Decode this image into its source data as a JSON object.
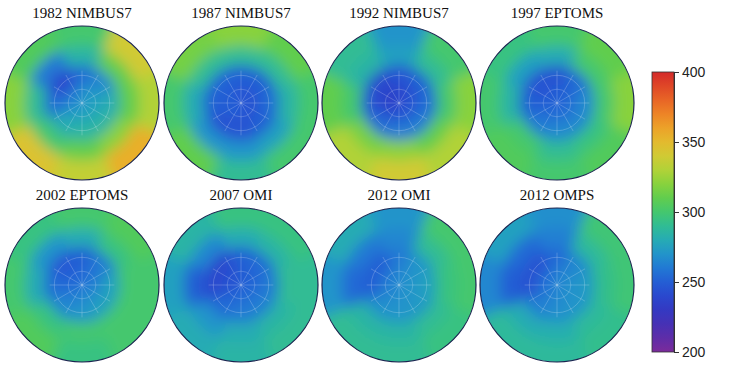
{
  "chart_data": {
    "type": "polar_heatmap",
    "panels": [
      {
        "title": "1982 NIMBUS7",
        "values": [
          [
            270,
            272,
            275,
            275,
            275,
            272,
            265,
            260
          ],
          [
            255,
            265,
            280,
            285,
            285,
            280,
            255,
            240
          ],
          [
            285,
            310,
            310,
            320,
            310,
            300,
            290,
            260
          ],
          [
            300,
            340,
            330,
            355,
            335,
            345,
            320,
            305
          ]
        ]
      },
      {
        "title": "1987 NIMBUS7",
        "values": [
          [
            248,
            245,
            245,
            245,
            248,
            250,
            250,
            248
          ],
          [
            250,
            250,
            255,
            250,
            245,
            245,
            250,
            252
          ],
          [
            290,
            290,
            285,
            275,
            270,
            270,
            280,
            290
          ],
          [
            320,
            310,
            300,
            300,
            290,
            310,
            300,
            315
          ]
        ]
      },
      {
        "title": "1992 NIMBUS7",
        "values": [
          [
            240,
            240,
            245,
            245,
            245,
            240,
            235,
            235
          ],
          [
            245,
            250,
            255,
            260,
            260,
            255,
            245,
            240
          ],
          [
            275,
            290,
            300,
            310,
            320,
            315,
            300,
            285
          ],
          [
            270,
            300,
            320,
            330,
            340,
            330,
            310,
            290
          ]
        ]
      },
      {
        "title": "1997 EPTOMS",
        "values": [
          [
            250,
            250,
            255,
            255,
            255,
            255,
            250,
            248
          ],
          [
            245,
            255,
            265,
            265,
            265,
            260,
            250,
            245
          ],
          [
            280,
            300,
            300,
            295,
            290,
            300,
            285,
            275
          ],
          [
            300,
            310,
            320,
            305,
            300,
            305,
            300,
            295
          ]
        ]
      },
      {
        "title": "2002 EPTOMS",
        "values": [
          [
            255,
            258,
            260,
            265,
            265,
            260,
            255,
            252
          ],
          [
            250,
            260,
            275,
            275,
            270,
            265,
            255,
            248
          ],
          [
            280,
            295,
            300,
            300,
            300,
            295,
            280,
            270
          ],
          [
            300,
            305,
            300,
            300,
            295,
            305,
            300,
            295
          ]
        ]
      },
      {
        "title": "2007 OMI",
        "values": [
          [
            250,
            250,
            252,
            255,
            255,
            250,
            245,
            245
          ],
          [
            250,
            255,
            260,
            262,
            260,
            255,
            240,
            240
          ],
          [
            280,
            285,
            290,
            285,
            280,
            270,
            250,
            265
          ],
          [
            295,
            295,
            290,
            290,
            285,
            280,
            275,
            285
          ]
        ]
      },
      {
        "title": "2012 OMI",
        "values": [
          [
            265,
            268,
            270,
            270,
            268,
            265,
            262,
            262
          ],
          [
            260,
            270,
            275,
            272,
            270,
            268,
            250,
            250
          ],
          [
            265,
            290,
            295,
            290,
            285,
            285,
            255,
            260
          ],
          [
            270,
            300,
            300,
            295,
            290,
            290,
            270,
            280
          ]
        ]
      },
      {
        "title": "2012 OMPS",
        "values": [
          [
            262,
            265,
            268,
            268,
            265,
            262,
            258,
            258
          ],
          [
            255,
            265,
            272,
            270,
            268,
            262,
            245,
            245
          ],
          [
            262,
            288,
            292,
            288,
            282,
            280,
            250,
            255
          ],
          [
            268,
            298,
            298,
            292,
            288,
            288,
            265,
            275
          ]
        ]
      }
    ],
    "colorbar_range": [
      200,
      400
    ],
    "colorbar_ticks": [
      200,
      250,
      300,
      350,
      400
    ]
  }
}
